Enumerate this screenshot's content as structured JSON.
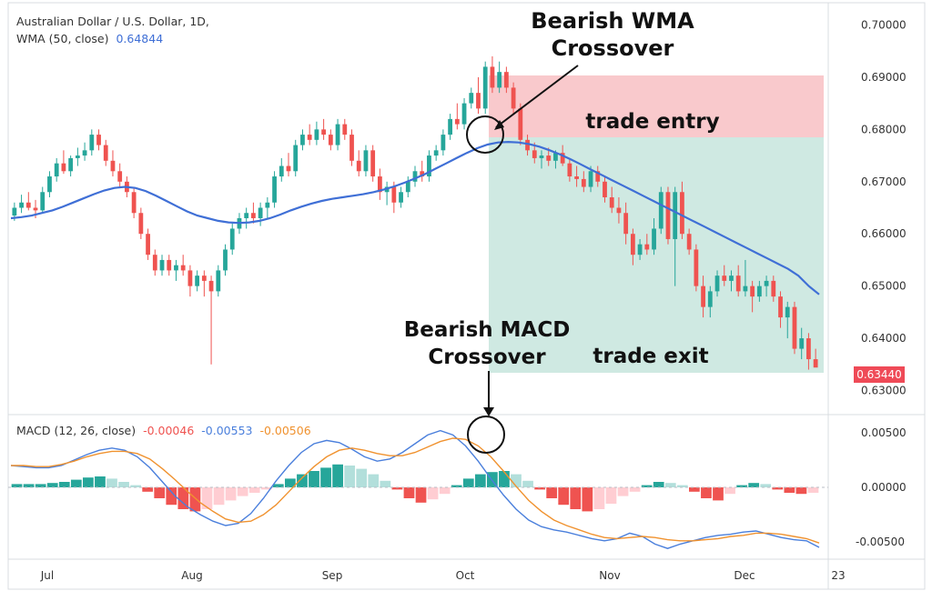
{
  "header": {
    "title": "Australian Dollar / U.S. Dollar, 1D,",
    "wma_label": "WMA (50, close)",
    "wma_value": "0.64844",
    "macd_label": "MACD (12, 26, close)",
    "macd_hist": "-0.00046",
    "macd_line": "-0.00553",
    "macd_signal": "-0.00506"
  },
  "annotations": {
    "wma_crossover_line1": "Bearish WMA",
    "wma_crossover_line2": "Crossover",
    "trade_entry": "trade entry",
    "trade_exit": "trade exit",
    "macd_crossover_line1": "Bearish MACD",
    "macd_crossover_line2": "Crossover"
  },
  "last_price": "0.63440",
  "colors": {
    "up": "#26a69a",
    "down": "#ef5350",
    "wma": "#3f6fd6",
    "macd": "#4a7fdc",
    "signal": "#f0922f",
    "stop_zone": "#f9c9cc",
    "target_zone": "#cfe9e2",
    "last_price_bg": "#ef4a57"
  },
  "chart_data": {
    "type": "candlestick",
    "price_axis": [
      "0.70000",
      "0.69000",
      "0.68000",
      "0.67000",
      "0.66000",
      "0.65000",
      "0.64000",
      "0.63000"
    ],
    "macd_axis": [
      "0.00500",
      "0.00000",
      "-0.00500"
    ],
    "time_axis": [
      "Jul",
      "Aug",
      "Sep",
      "Oct",
      "Nov",
      "Dec",
      "23"
    ],
    "price_ylim": [
      0.628,
      0.702
    ],
    "macd_ylim": [
      -0.0068,
      0.0068
    ],
    "candles": [
      [
        0.6635,
        0.666,
        0.6625,
        0.665
      ],
      [
        0.665,
        0.6675,
        0.664,
        0.666
      ],
      [
        0.666,
        0.668,
        0.6645,
        0.665
      ],
      [
        0.665,
        0.6665,
        0.663,
        0.6645
      ],
      [
        0.6645,
        0.669,
        0.664,
        0.668
      ],
      [
        0.668,
        0.672,
        0.667,
        0.671
      ],
      [
        0.671,
        0.6745,
        0.67,
        0.6735
      ],
      [
        0.6735,
        0.676,
        0.6715,
        0.672
      ],
      [
        0.672,
        0.675,
        0.671,
        0.6745
      ],
      [
        0.6745,
        0.6765,
        0.673,
        0.675
      ],
      [
        0.675,
        0.6775,
        0.674,
        0.676
      ],
      [
        0.676,
        0.68,
        0.675,
        0.679
      ],
      [
        0.679,
        0.68,
        0.676,
        0.677
      ],
      [
        0.677,
        0.678,
        0.673,
        0.674
      ],
      [
        0.674,
        0.676,
        0.671,
        0.672
      ],
      [
        0.672,
        0.6735,
        0.669,
        0.67
      ],
      [
        0.67,
        0.671,
        0.667,
        0.668
      ],
      [
        0.668,
        0.669,
        0.663,
        0.664
      ],
      [
        0.664,
        0.665,
        0.659,
        0.66
      ],
      [
        0.66,
        0.661,
        0.655,
        0.656
      ],
      [
        0.656,
        0.657,
        0.652,
        0.653
      ],
      [
        0.653,
        0.656,
        0.652,
        0.655
      ],
      [
        0.655,
        0.656,
        0.652,
        0.653
      ],
      [
        0.653,
        0.655,
        0.651,
        0.654
      ],
      [
        0.654,
        0.656,
        0.652,
        0.653
      ],
      [
        0.653,
        0.654,
        0.648,
        0.65
      ],
      [
        0.65,
        0.653,
        0.649,
        0.652
      ],
      [
        0.652,
        0.653,
        0.648,
        0.651
      ],
      [
        0.651,
        0.652,
        0.635,
        0.649
      ],
      [
        0.649,
        0.654,
        0.648,
        0.653
      ],
      [
        0.653,
        0.658,
        0.652,
        0.657
      ],
      [
        0.657,
        0.662,
        0.656,
        0.661
      ],
      [
        0.661,
        0.664,
        0.66,
        0.663
      ],
      [
        0.663,
        0.665,
        0.661,
        0.664
      ],
      [
        0.664,
        0.666,
        0.662,
        0.663
      ],
      [
        0.663,
        0.666,
        0.6615,
        0.665
      ],
      [
        0.665,
        0.667,
        0.663,
        0.666
      ],
      [
        0.666,
        0.672,
        0.665,
        0.671
      ],
      [
        0.671,
        0.6745,
        0.67,
        0.673
      ],
      [
        0.673,
        0.6755,
        0.671,
        0.672
      ],
      [
        0.672,
        0.678,
        0.671,
        0.677
      ],
      [
        0.677,
        0.68,
        0.676,
        0.679
      ],
      [
        0.679,
        0.681,
        0.677,
        0.678
      ],
      [
        0.678,
        0.6815,
        0.677,
        0.68
      ],
      [
        0.68,
        0.682,
        0.678,
        0.679
      ],
      [
        0.679,
        0.68,
        0.676,
        0.677
      ],
      [
        0.677,
        0.682,
        0.676,
        0.681
      ],
      [
        0.681,
        0.682,
        0.678,
        0.679
      ],
      [
        0.679,
        0.68,
        0.673,
        0.674
      ],
      [
        0.674,
        0.676,
        0.671,
        0.672
      ],
      [
        0.672,
        0.677,
        0.671,
        0.676
      ],
      [
        0.676,
        0.677,
        0.67,
        0.671
      ],
      [
        0.671,
        0.6725,
        0.6665,
        0.668
      ],
      [
        0.668,
        0.67,
        0.6655,
        0.669
      ],
      [
        0.669,
        0.67,
        0.664,
        0.666
      ],
      [
        0.666,
        0.669,
        0.665,
        0.668
      ],
      [
        0.668,
        0.671,
        0.667,
        0.67
      ],
      [
        0.67,
        0.673,
        0.669,
        0.672
      ],
      [
        0.672,
        0.674,
        0.67,
        0.671
      ],
      [
        0.671,
        0.676,
        0.67,
        0.675
      ],
      [
        0.675,
        0.677,
        0.674,
        0.676
      ],
      [
        0.676,
        0.68,
        0.675,
        0.679
      ],
      [
        0.679,
        0.683,
        0.678,
        0.682
      ],
      [
        0.682,
        0.685,
        0.68,
        0.681
      ],
      [
        0.681,
        0.686,
        0.68,
        0.685
      ],
      [
        0.685,
        0.688,
        0.684,
        0.687
      ],
      [
        0.687,
        0.69,
        0.683,
        0.684
      ],
      [
        0.684,
        0.693,
        0.683,
        0.692
      ],
      [
        0.692,
        0.694,
        0.687,
        0.688
      ],
      [
        0.688,
        0.693,
        0.687,
        0.691
      ],
      [
        0.691,
        0.692,
        0.687,
        0.688
      ],
      [
        0.688,
        0.689,
        0.683,
        0.684
      ],
      [
        0.684,
        0.685,
        0.677,
        0.678
      ],
      [
        0.678,
        0.679,
        0.675,
        0.676
      ],
      [
        0.676,
        0.6775,
        0.6735,
        0.6745
      ],
      [
        0.6745,
        0.676,
        0.6725,
        0.675
      ],
      [
        0.675,
        0.6765,
        0.673,
        0.674
      ],
      [
        0.674,
        0.676,
        0.6725,
        0.6755
      ],
      [
        0.6755,
        0.677,
        0.673,
        0.6735
      ],
      [
        0.6735,
        0.6745,
        0.67,
        0.671
      ],
      [
        0.671,
        0.673,
        0.669,
        0.6705
      ],
      [
        0.6705,
        0.672,
        0.668,
        0.669
      ],
      [
        0.669,
        0.673,
        0.668,
        0.672
      ],
      [
        0.672,
        0.673,
        0.669,
        0.67
      ],
      [
        0.67,
        0.671,
        0.666,
        0.667
      ],
      [
        0.667,
        0.669,
        0.664,
        0.665
      ],
      [
        0.665,
        0.667,
        0.662,
        0.664
      ],
      [
        0.664,
        0.666,
        0.658,
        0.66
      ],
      [
        0.66,
        0.661,
        0.654,
        0.656
      ],
      [
        0.656,
        0.659,
        0.655,
        0.658
      ],
      [
        0.658,
        0.66,
        0.656,
        0.657
      ],
      [
        0.657,
        0.663,
        0.656,
        0.661
      ],
      [
        0.661,
        0.669,
        0.66,
        0.668
      ],
      [
        0.668,
        0.669,
        0.658,
        0.659
      ],
      [
        0.659,
        0.669,
        0.65,
        0.668
      ],
      [
        0.668,
        0.67,
        0.659,
        0.66
      ],
      [
        0.66,
        0.661,
        0.656,
        0.657
      ],
      [
        0.657,
        0.658,
        0.649,
        0.65
      ],
      [
        0.65,
        0.652,
        0.644,
        0.646
      ],
      [
        0.646,
        0.65,
        0.644,
        0.649
      ],
      [
        0.649,
        0.653,
        0.648,
        0.652
      ],
      [
        0.652,
        0.654,
        0.65,
        0.651
      ],
      [
        0.651,
        0.653,
        0.649,
        0.652
      ],
      [
        0.652,
        0.654,
        0.648,
        0.649
      ],
      [
        0.649,
        0.655,
        0.648,
        0.65
      ],
      [
        0.65,
        0.651,
        0.645,
        0.648
      ],
      [
        0.648,
        0.651,
        0.647,
        0.65
      ],
      [
        0.65,
        0.652,
        0.648,
        0.651
      ],
      [
        0.651,
        0.652,
        0.647,
        0.648
      ],
      [
        0.648,
        0.649,
        0.642,
        0.644
      ],
      [
        0.644,
        0.647,
        0.64,
        0.646
      ],
      [
        0.646,
        0.647,
        0.637,
        0.638
      ],
      [
        0.638,
        0.642,
        0.636,
        0.64
      ],
      [
        0.64,
        0.641,
        0.634,
        0.636
      ],
      [
        0.636,
        0.638,
        0.6345,
        0.6344
      ]
    ],
    "wma": [
      0.663,
      0.6632,
      0.6635,
      0.664,
      0.6645,
      0.6652,
      0.666,
      0.6668,
      0.6676,
      0.6683,
      0.6688,
      0.669,
      0.6688,
      0.6682,
      0.6673,
      0.6663,
      0.6653,
      0.6643,
      0.6635,
      0.663,
      0.6625,
      0.6622,
      0.6621,
      0.6622,
      0.6625,
      0.663,
      0.6637,
      0.6645,
      0.6652,
      0.6658,
      0.6663,
      0.6667,
      0.667,
      0.6673,
      0.6676,
      0.668,
      0.6685,
      0.6691,
      0.6698,
      0.6706,
      0.6715,
      0.6725,
      0.6735,
      0.6745,
      0.6755,
      0.6764,
      0.6771,
      0.6775,
      0.6776,
      0.6775,
      0.6772,
      0.6767,
      0.676,
      0.6752,
      0.6743,
      0.6733,
      0.6723,
      0.6713,
      0.6703,
      0.6693,
      0.6683,
      0.6673,
      0.6663,
      0.6653,
      0.6643,
      0.6633,
      0.6623,
      0.6613,
      0.6603,
      0.6593,
      0.6583,
      0.6573,
      0.6563,
      0.6553,
      0.6543,
      0.6533,
      0.652,
      0.65,
      0.6484
    ],
    "macd_line": [
      0.002,
      0.0019,
      0.0018,
      0.0018,
      0.002,
      0.0025,
      0.003,
      0.0034,
      0.0036,
      0.0034,
      0.0028,
      0.0018,
      0.0005,
      -0.0008,
      -0.0018,
      -0.0025,
      -0.0031,
      -0.0035,
      -0.0033,
      -0.0024,
      -0.001,
      0.0006,
      0.002,
      0.0032,
      0.004,
      0.0043,
      0.0041,
      0.0035,
      0.0028,
      0.0024,
      0.0026,
      0.0032,
      0.004,
      0.0048,
      0.0052,
      0.0048,
      0.0038,
      0.0024,
      0.0008,
      -0.0007,
      -0.002,
      -0.003,
      -0.0036,
      -0.0039,
      -0.0041,
      -0.0044,
      -0.0047,
      -0.0049,
      -0.0047,
      -0.0042,
      -0.0045,
      -0.0052,
      -0.0056,
      -0.0052,
      -0.0049,
      -0.0046,
      -0.0044,
      -0.0043,
      -0.0041,
      -0.004,
      -0.0043,
      -0.0046,
      -0.0048,
      -0.0049,
      -0.0055
    ],
    "signal_line": [
      0.002,
      0.002,
      0.0019,
      0.0019,
      0.0021,
      0.0024,
      0.0028,
      0.0031,
      0.0033,
      0.0033,
      0.0031,
      0.0026,
      0.0017,
      0.0007,
      -0.0004,
      -0.0014,
      -0.0022,
      -0.0029,
      -0.0032,
      -0.0031,
      -0.0025,
      -0.0016,
      -0.0004,
      0.0008,
      0.0019,
      0.0028,
      0.0034,
      0.0036,
      0.0034,
      0.0031,
      0.0029,
      0.0029,
      0.0032,
      0.0037,
      0.0042,
      0.0045,
      0.0044,
      0.0038,
      0.0028,
      0.0015,
      0.0001,
      -0.0012,
      -0.0022,
      -0.003,
      -0.0035,
      -0.0039,
      -0.0043,
      -0.0046,
      -0.0047,
      -0.0046,
      -0.0045,
      -0.0046,
      -0.0048,
      -0.0049,
      -0.0049,
      -0.0048,
      -0.0047,
      -0.0045,
      -0.0044,
      -0.0042,
      -0.0042,
      -0.0043,
      -0.0045,
      -0.0047,
      -0.0051
    ],
    "histogram": [
      0.0003,
      0.0003,
      0.0003,
      0.0004,
      0.0005,
      0.0007,
      0.0009,
      0.001,
      0.0008,
      0.0005,
      0.0002,
      -0.0004,
      -0.001,
      -0.0016,
      -0.002,
      -0.0022,
      -0.002,
      -0.0016,
      -0.0012,
      -0.0008,
      -0.0005,
      -0.0002,
      0.0003,
      0.0008,
      0.0012,
      0.0015,
      0.0018,
      0.0021,
      0.002,
      0.0017,
      0.0012,
      0.0006,
      -0.0002,
      -0.001,
      -0.0014,
      -0.0011,
      -0.0006,
      0.0002,
      0.0008,
      0.0012,
      0.0014,
      0.0015,
      0.0012,
      0.0006,
      -0.0002,
      -0.001,
      -0.0016,
      -0.002,
      -0.0022,
      -0.002,
      -0.0015,
      -0.0008,
      -0.0004,
      0.0002,
      0.0005,
      0.0004,
      0.0002,
      -0.0004,
      -0.001,
      -0.0012,
      -0.0006,
      0.0002,
      0.0004,
      0.0003,
      -0.0002,
      -0.0005,
      -0.0006,
      -0.0005
    ]
  }
}
